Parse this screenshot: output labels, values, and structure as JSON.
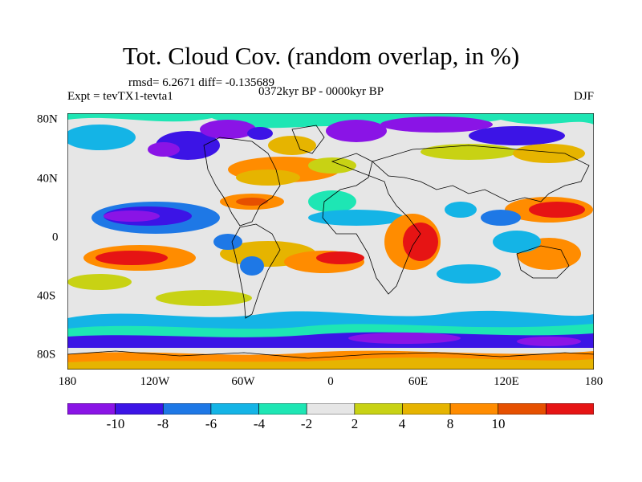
{
  "title": "Tot. Cloud Cov. (random overlap, in %)",
  "stats_line": "rmsd= 6.2671 diff= -0.135689",
  "left_label": "Expt = tevTX1-tevta1",
  "center_label": "0372kyr BP - 0000kyr BP",
  "right_label": "DJF",
  "x_ticks": [
    "180",
    "120W",
    "60W",
    "0",
    "60E",
    "120E",
    "180"
  ],
  "y_ticks": [
    "80N",
    "40N",
    "0",
    "40S",
    "80S"
  ],
  "colorbar": {
    "colors": [
      "#8a14e6",
      "#3c14e6",
      "#1e78e6",
      "#14b4e6",
      "#1ee6b4",
      "#e6e6e6",
      "#c8d214",
      "#e6b400",
      "#ff8c00",
      "#e65000",
      "#e61414"
    ],
    "labels": [
      "-10",
      "-8",
      "-6",
      "-4",
      "-2",
      "2",
      "4",
      "8",
      "10"
    ]
  }
}
